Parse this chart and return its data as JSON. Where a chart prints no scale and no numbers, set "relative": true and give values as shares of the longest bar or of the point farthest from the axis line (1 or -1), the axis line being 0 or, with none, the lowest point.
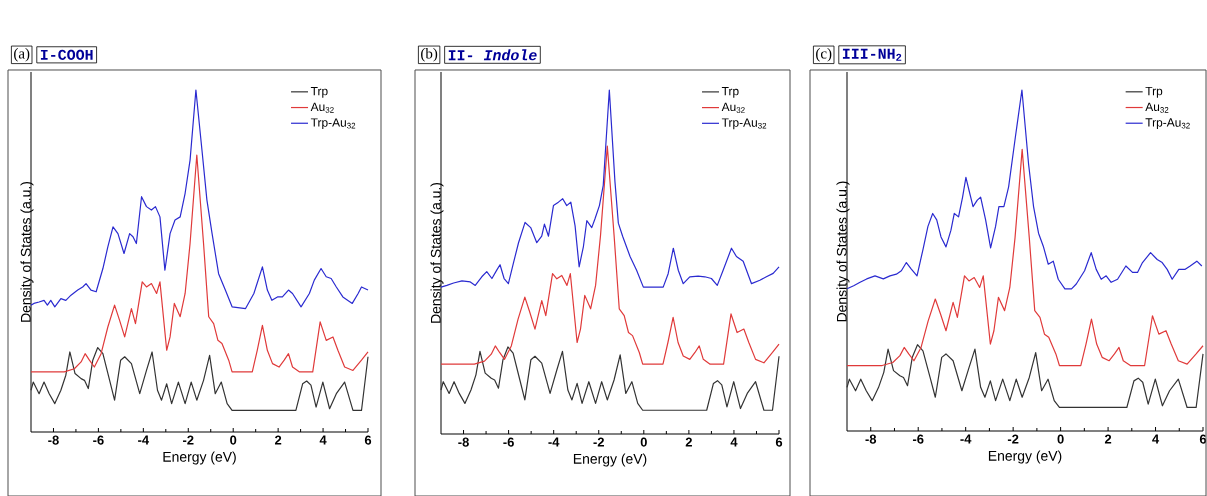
{
  "chart_data": [
    {
      "type": "line",
      "title": "(a)",
      "subtitle": "I-COOH",
      "xlabel": "Energy (eV)",
      "ylabel": "Density of States (a.u.)",
      "xlim": [
        -9,
        6
      ],
      "xticks": [
        -8,
        -6,
        -4,
        -2,
        0,
        2,
        4,
        6
      ],
      "relative": true,
      "legend": "top right",
      "series": [
        {
          "name": "Trp",
          "color": "#333333",
          "x": [
            -9.0,
            -8.9,
            -8.64,
            -8.42,
            -8.19,
            -7.94,
            -7.67,
            -7.45,
            -7.27,
            -7.04,
            -6.77,
            -6.62,
            -6.45,
            -6.25,
            -6.03,
            -5.8,
            -5.5,
            -5.28,
            -5.01,
            -4.83,
            -4.53,
            -4.16,
            -3.86,
            -3.61,
            -3.37,
            -3.19,
            -2.96,
            -2.74,
            -2.44,
            -2.14,
            -1.87,
            -1.62,
            -1.32,
            -1.05,
            -0.8,
            -0.53,
            -0.27,
            -0.05,
            2.79,
            3.09,
            3.27,
            3.46,
            3.69,
            3.99,
            4.29,
            4.59,
            4.96,
            5.33,
            5.71,
            6.0
          ],
          "values": [
            0.122,
            0.146,
            0.112,
            0.146,
            0.112,
            0.083,
            0.122,
            0.166,
            0.234,
            0.171,
            0.156,
            0.151,
            0.127,
            0.21,
            0.247,
            0.229,
            0.151,
            0.093,
            0.21,
            0.22,
            0.2,
            0.112,
            0.18,
            0.234,
            0.122,
            0.093,
            0.141,
            0.083,
            0.146,
            0.083,
            0.146,
            0.093,
            0.151,
            0.224,
            0.112,
            0.146,
            0.083,
            0.063,
            0.063,
            0.141,
            0.149,
            0.137,
            0.073,
            0.146,
            0.068,
            0.112,
            0.146,
            0.063,
            0.063,
            0.22
          ]
        },
        {
          "name": "Au$_{32}$",
          "color": "#e03a3a",
          "x": [
            -9.0,
            -7.52,
            -7.07,
            -6.77,
            -6.59,
            -6.4,
            -6.18,
            -5.88,
            -5.58,
            -5.28,
            -5.06,
            -4.83,
            -4.53,
            -4.35,
            -4.05,
            -3.86,
            -3.64,
            -3.41,
            -3.26,
            -2.96,
            -2.81,
            -2.62,
            -2.36,
            -2.14,
            -1.92,
            -1.62,
            -1.32,
            -1.09,
            -0.87,
            -0.68,
            -0.5,
            -0.2,
            -0.05,
            0.85,
            1.07,
            1.3,
            1.52,
            1.75,
            2.04,
            2.27,
            2.46,
            2.64,
            2.94,
            3.54,
            3.87,
            4.14,
            4.44,
            4.66,
            4.96,
            5.33,
            5.71,
            6.0
          ],
          "values": [
            0.176,
            0.176,
            0.185,
            0.205,
            0.229,
            0.21,
            0.19,
            0.229,
            0.307,
            0.371,
            0.327,
            0.278,
            0.361,
            0.317,
            0.439,
            0.424,
            0.434,
            0.405,
            0.439,
            0.239,
            0.278,
            0.376,
            0.337,
            0.405,
            0.551,
            0.81,
            0.551,
            0.337,
            0.317,
            0.268,
            0.259,
            0.21,
            0.176,
            0.176,
            0.239,
            0.312,
            0.239,
            0.2,
            0.19,
            0.21,
            0.229,
            0.19,
            0.176,
            0.176,
            0.322,
            0.268,
            0.278,
            0.239,
            0.19,
            0.18,
            0.21,
            0.234
          ]
        },
        {
          "name": "Trp-Au$_{32}$",
          "color": "#2a2ad0",
          "x": [
            -9.0,
            -8.87,
            -8.64,
            -8.42,
            -8.27,
            -8.12,
            -7.94,
            -7.67,
            -7.45,
            -7.22,
            -6.92,
            -6.7,
            -6.55,
            -6.33,
            -6.1,
            -5.8,
            -5.58,
            -5.35,
            -5.13,
            -4.86,
            -4.61,
            -4.46,
            -4.31,
            -4.08,
            -3.86,
            -3.64,
            -3.46,
            -3.26,
            -3.04,
            -2.81,
            -2.59,
            -2.36,
            -2.14,
            -1.92,
            -1.66,
            -1.39,
            -1.17,
            -0.94,
            -0.65,
            -0.35,
            -0.05,
            0.55,
            0.92,
            1.3,
            1.52,
            1.72,
            1.97,
            2.19,
            2.46,
            2.64,
            3.02,
            3.39,
            3.61,
            3.91,
            4.14,
            4.36,
            4.59,
            4.88,
            5.3,
            5.56,
            5.71,
            6.0
          ],
          "values": [
            0.371,
            0.376,
            0.38,
            0.385,
            0.371,
            0.385,
            0.366,
            0.39,
            0.385,
            0.4,
            0.415,
            0.424,
            0.434,
            0.415,
            0.41,
            0.478,
            0.541,
            0.6,
            0.58,
            0.522,
            0.58,
            0.571,
            0.551,
            0.688,
            0.659,
            0.649,
            0.659,
            0.629,
            0.473,
            0.58,
            0.62,
            0.629,
            0.698,
            0.795,
            1.0,
            0.824,
            0.678,
            0.58,
            0.463,
            0.415,
            0.366,
            0.361,
            0.405,
            0.483,
            0.415,
            0.385,
            0.395,
            0.395,
            0.415,
            0.405,
            0.366,
            0.405,
            0.444,
            0.478,
            0.454,
            0.449,
            0.424,
            0.395,
            0.376,
            0.405,
            0.424,
            0.415
          ]
        }
      ]
    },
    {
      "type": "line",
      "title": "(b)",
      "subtitle": "II- *Indole*",
      "xlabel": "Energy (eV)",
      "ylabel": "Density of States (a.u.)",
      "xlim": [
        -9,
        6
      ],
      "xticks": [
        -8,
        -6,
        -4,
        -2,
        0,
        2,
        4,
        6
      ],
      "relative": true,
      "legend": "top right",
      "series": [
        {
          "name": "Trp",
          "color": "#333333",
          "x": [
            -9.0,
            -8.9,
            -8.64,
            -8.42,
            -8.19,
            -7.94,
            -7.67,
            -7.45,
            -7.27,
            -7.04,
            -6.77,
            -6.62,
            -6.45,
            -6.25,
            -6.03,
            -5.8,
            -5.5,
            -5.28,
            -5.01,
            -4.83,
            -4.53,
            -4.16,
            -3.86,
            -3.61,
            -3.37,
            -3.19,
            -2.96,
            -2.74,
            -2.44,
            -2.14,
            -1.87,
            -1.62,
            -1.32,
            -1.05,
            -0.8,
            -0.53,
            -0.27,
            -0.05,
            2.79,
            3.09,
            3.27,
            3.46,
            3.69,
            3.99,
            4.29,
            4.59,
            4.96,
            5.33,
            5.71,
            6.0
          ],
          "values": [
            0.128,
            0.152,
            0.118,
            0.152,
            0.118,
            0.089,
            0.128,
            0.172,
            0.24,
            0.177,
            0.162,
            0.157,
            0.133,
            0.216,
            0.253,
            0.235,
            0.157,
            0.099,
            0.216,
            0.226,
            0.206,
            0.118,
            0.186,
            0.24,
            0.128,
            0.099,
            0.147,
            0.089,
            0.152,
            0.089,
            0.152,
            0.099,
            0.157,
            0.23,
            0.118,
            0.152,
            0.089,
            0.069,
            0.069,
            0.147,
            0.155,
            0.143,
            0.079,
            0.152,
            0.074,
            0.118,
            0.152,
            0.069,
            0.069,
            0.226
          ]
        },
        {
          "name": "Au$_{32}$",
          "color": "#e03a3a",
          "x": [
            -9.0,
            -7.52,
            -7.07,
            -6.77,
            -6.59,
            -6.4,
            -6.18,
            -5.88,
            -5.58,
            -5.28,
            -5.06,
            -4.83,
            -4.53,
            -4.35,
            -4.05,
            -3.86,
            -3.64,
            -3.41,
            -3.26,
            -2.96,
            -2.81,
            -2.62,
            -2.36,
            -2.14,
            -1.92,
            -1.62,
            -1.32,
            -1.09,
            -0.87,
            -0.68,
            -0.5,
            -0.2,
            -0.05,
            0.85,
            1.07,
            1.3,
            1.52,
            1.75,
            2.04,
            2.27,
            2.46,
            2.64,
            2.94,
            3.54,
            3.87,
            4.14,
            4.44,
            4.66,
            4.96,
            5.33,
            5.71,
            6.0
          ],
          "values": [
            0.203,
            0.203,
            0.212,
            0.232,
            0.256,
            0.237,
            0.217,
            0.256,
            0.334,
            0.398,
            0.354,
            0.305,
            0.388,
            0.344,
            0.466,
            0.451,
            0.461,
            0.432,
            0.466,
            0.266,
            0.305,
            0.403,
            0.364,
            0.432,
            0.578,
            0.837,
            0.578,
            0.364,
            0.344,
            0.295,
            0.286,
            0.237,
            0.203,
            0.203,
            0.266,
            0.339,
            0.266,
            0.227,
            0.217,
            0.237,
            0.256,
            0.217,
            0.203,
            0.203,
            0.349,
            0.295,
            0.305,
            0.266,
            0.217,
            0.207,
            0.237,
            0.261
          ]
        },
        {
          "name": "Trp-Au$_{32}$",
          "color": "#2a2ad0",
          "x": [
            -9.0,
            -8.74,
            -8.44,
            -8.07,
            -7.7,
            -7.48,
            -7.19,
            -6.97,
            -6.74,
            -6.52,
            -6.38,
            -6.2,
            -6.01,
            -5.79,
            -5.56,
            -5.27,
            -5.02,
            -4.75,
            -4.53,
            -4.41,
            -4.23,
            -4.01,
            -3.79,
            -3.6,
            -3.42,
            -3.24,
            -3.05,
            -2.87,
            -2.68,
            -2.53,
            -2.31,
            -2.17,
            -1.97,
            -1.8,
            -1.53,
            -1.28,
            -1.13,
            -0.94,
            -0.61,
            -0.32,
            -0.02,
            0.86,
            1.08,
            1.31,
            1.53,
            1.75,
            2.04,
            2.41,
            2.71,
            3.0,
            3.26,
            3.52,
            3.89,
            4.11,
            4.41,
            4.78,
            5.15,
            5.44,
            5.74,
            6.0
          ],
          "values": [
            0.427,
            0.432,
            0.439,
            0.445,
            0.442,
            0.432,
            0.457,
            0.472,
            0.452,
            0.477,
            0.492,
            0.452,
            0.437,
            0.496,
            0.556,
            0.615,
            0.6,
            0.556,
            0.575,
            0.61,
            0.575,
            0.664,
            0.674,
            0.684,
            0.664,
            0.674,
            0.605,
            0.486,
            0.545,
            0.62,
            0.6,
            0.625,
            0.664,
            0.723,
            1.0,
            0.733,
            0.613,
            0.575,
            0.516,
            0.476,
            0.427,
            0.427,
            0.466,
            0.54,
            0.476,
            0.437,
            0.457,
            0.459,
            0.457,
            0.452,
            0.432,
            0.476,
            0.54,
            0.516,
            0.502,
            0.437,
            0.447,
            0.457,
            0.467,
            0.486
          ]
        }
      ]
    },
    {
      "type": "line",
      "title": "(c)",
      "subtitle": "III-NH$_{2}$",
      "xlabel": "Energy (eV)",
      "ylabel": "Density of States (a.u.)",
      "xlim": [
        -9,
        6
      ],
      "xticks": [
        -8,
        -6,
        -4,
        -2,
        0,
        2,
        4,
        6
      ],
      "relative": true,
      "legend": "top right",
      "series": [
        {
          "name": "Trp",
          "color": "#333333",
          "x": [
            -9.0,
            -8.9,
            -8.64,
            -8.42,
            -8.19,
            -7.94,
            -7.67,
            -7.45,
            -7.27,
            -7.04,
            -6.77,
            -6.62,
            -6.45,
            -6.25,
            -6.03,
            -5.8,
            -5.5,
            -5.28,
            -5.01,
            -4.83,
            -4.53,
            -4.16,
            -3.86,
            -3.61,
            -3.37,
            -3.19,
            -2.96,
            -2.74,
            -2.44,
            -2.14,
            -1.87,
            -1.62,
            -1.32,
            -1.05,
            -0.8,
            -0.53,
            -0.27,
            -0.05,
            2.79,
            3.09,
            3.27,
            3.46,
            3.69,
            3.99,
            4.29,
            4.59,
            4.96,
            5.33,
            5.71,
            6.0
          ],
          "values": [
            0.128,
            0.152,
            0.118,
            0.152,
            0.118,
            0.089,
            0.128,
            0.172,
            0.24,
            0.177,
            0.162,
            0.157,
            0.133,
            0.216,
            0.253,
            0.235,
            0.157,
            0.099,
            0.216,
            0.226,
            0.206,
            0.118,
            0.186,
            0.24,
            0.128,
            0.099,
            0.147,
            0.089,
            0.152,
            0.089,
            0.152,
            0.099,
            0.157,
            0.23,
            0.118,
            0.152,
            0.089,
            0.069,
            0.069,
            0.147,
            0.155,
            0.143,
            0.079,
            0.152,
            0.074,
            0.118,
            0.152,
            0.069,
            0.069,
            0.226
          ]
        },
        {
          "name": "Au$_{32}$",
          "color": "#e03a3a",
          "x": [
            -9.0,
            -7.52,
            -7.07,
            -6.77,
            -6.59,
            -6.4,
            -6.18,
            -5.88,
            -5.58,
            -5.28,
            -5.06,
            -4.83,
            -4.53,
            -4.35,
            -4.05,
            -3.86,
            -3.64,
            -3.41,
            -3.26,
            -2.96,
            -2.81,
            -2.62,
            -2.36,
            -2.14,
            -1.92,
            -1.62,
            -1.32,
            -1.09,
            -0.87,
            -0.68,
            -0.5,
            -0.2,
            -0.05,
            0.85,
            1.07,
            1.3,
            1.52,
            1.75,
            2.04,
            2.27,
            2.46,
            2.64,
            2.94,
            3.54,
            3.87,
            4.14,
            4.44,
            4.66,
            4.96,
            5.33,
            5.71,
            6.0
          ],
          "values": [
            0.192,
            0.192,
            0.201,
            0.221,
            0.245,
            0.226,
            0.206,
            0.245,
            0.323,
            0.387,
            0.343,
            0.294,
            0.377,
            0.333,
            0.455,
            0.44,
            0.45,
            0.421,
            0.455,
            0.255,
            0.294,
            0.392,
            0.353,
            0.421,
            0.567,
            0.826,
            0.567,
            0.353,
            0.333,
            0.284,
            0.275,
            0.226,
            0.192,
            0.192,
            0.255,
            0.328,
            0.255,
            0.216,
            0.206,
            0.226,
            0.245,
            0.206,
            0.192,
            0.192,
            0.338,
            0.284,
            0.294,
            0.255,
            0.206,
            0.196,
            0.226,
            0.25
          ]
        },
        {
          "name": "Trp-Au$_{32}$",
          "color": "#2a2ad0",
          "x": [
            -9.0,
            -8.72,
            -8.45,
            -8.17,
            -7.82,
            -7.47,
            -7.19,
            -6.92,
            -6.71,
            -6.5,
            -6.29,
            -6.05,
            -5.8,
            -5.59,
            -5.39,
            -5.22,
            -5.04,
            -4.83,
            -4.62,
            -4.48,
            -4.3,
            -4.13,
            -3.99,
            -3.86,
            -3.69,
            -3.51,
            -3.37,
            -3.16,
            -2.95,
            -2.74,
            -2.6,
            -2.39,
            -2.19,
            -1.91,
            -1.63,
            -1.35,
            -1.14,
            -0.93,
            -0.73,
            -0.52,
            -0.31,
            -0.1,
            0.18,
            0.46,
            0.66,
            1.01,
            1.29,
            1.5,
            1.71,
            1.92,
            2.13,
            2.4,
            2.75,
            3.03,
            3.24,
            3.45,
            3.79,
            4.07,
            4.28,
            4.49,
            4.7,
            4.98,
            5.25,
            5.46,
            5.74,
            5.95
          ],
          "values": [
            0.417,
            0.426,
            0.436,
            0.446,
            0.455,
            0.446,
            0.455,
            0.46,
            0.47,
            0.494,
            0.475,
            0.455,
            0.532,
            0.6,
            0.638,
            0.619,
            0.569,
            0.54,
            0.589,
            0.638,
            0.628,
            0.686,
            0.744,
            0.706,
            0.658,
            0.677,
            0.686,
            0.619,
            0.537,
            0.6,
            0.658,
            0.658,
            0.716,
            0.86,
            1.0,
            0.783,
            0.658,
            0.58,
            0.542,
            0.489,
            0.498,
            0.445,
            0.417,
            0.417,
            0.431,
            0.47,
            0.523,
            0.474,
            0.445,
            0.455,
            0.436,
            0.445,
            0.484,
            0.465,
            0.465,
            0.494,
            0.523,
            0.503,
            0.494,
            0.474,
            0.445,
            0.474,
            0.474,
            0.484,
            0.498,
            0.484
          ]
        }
      ]
    }
  ]
}
